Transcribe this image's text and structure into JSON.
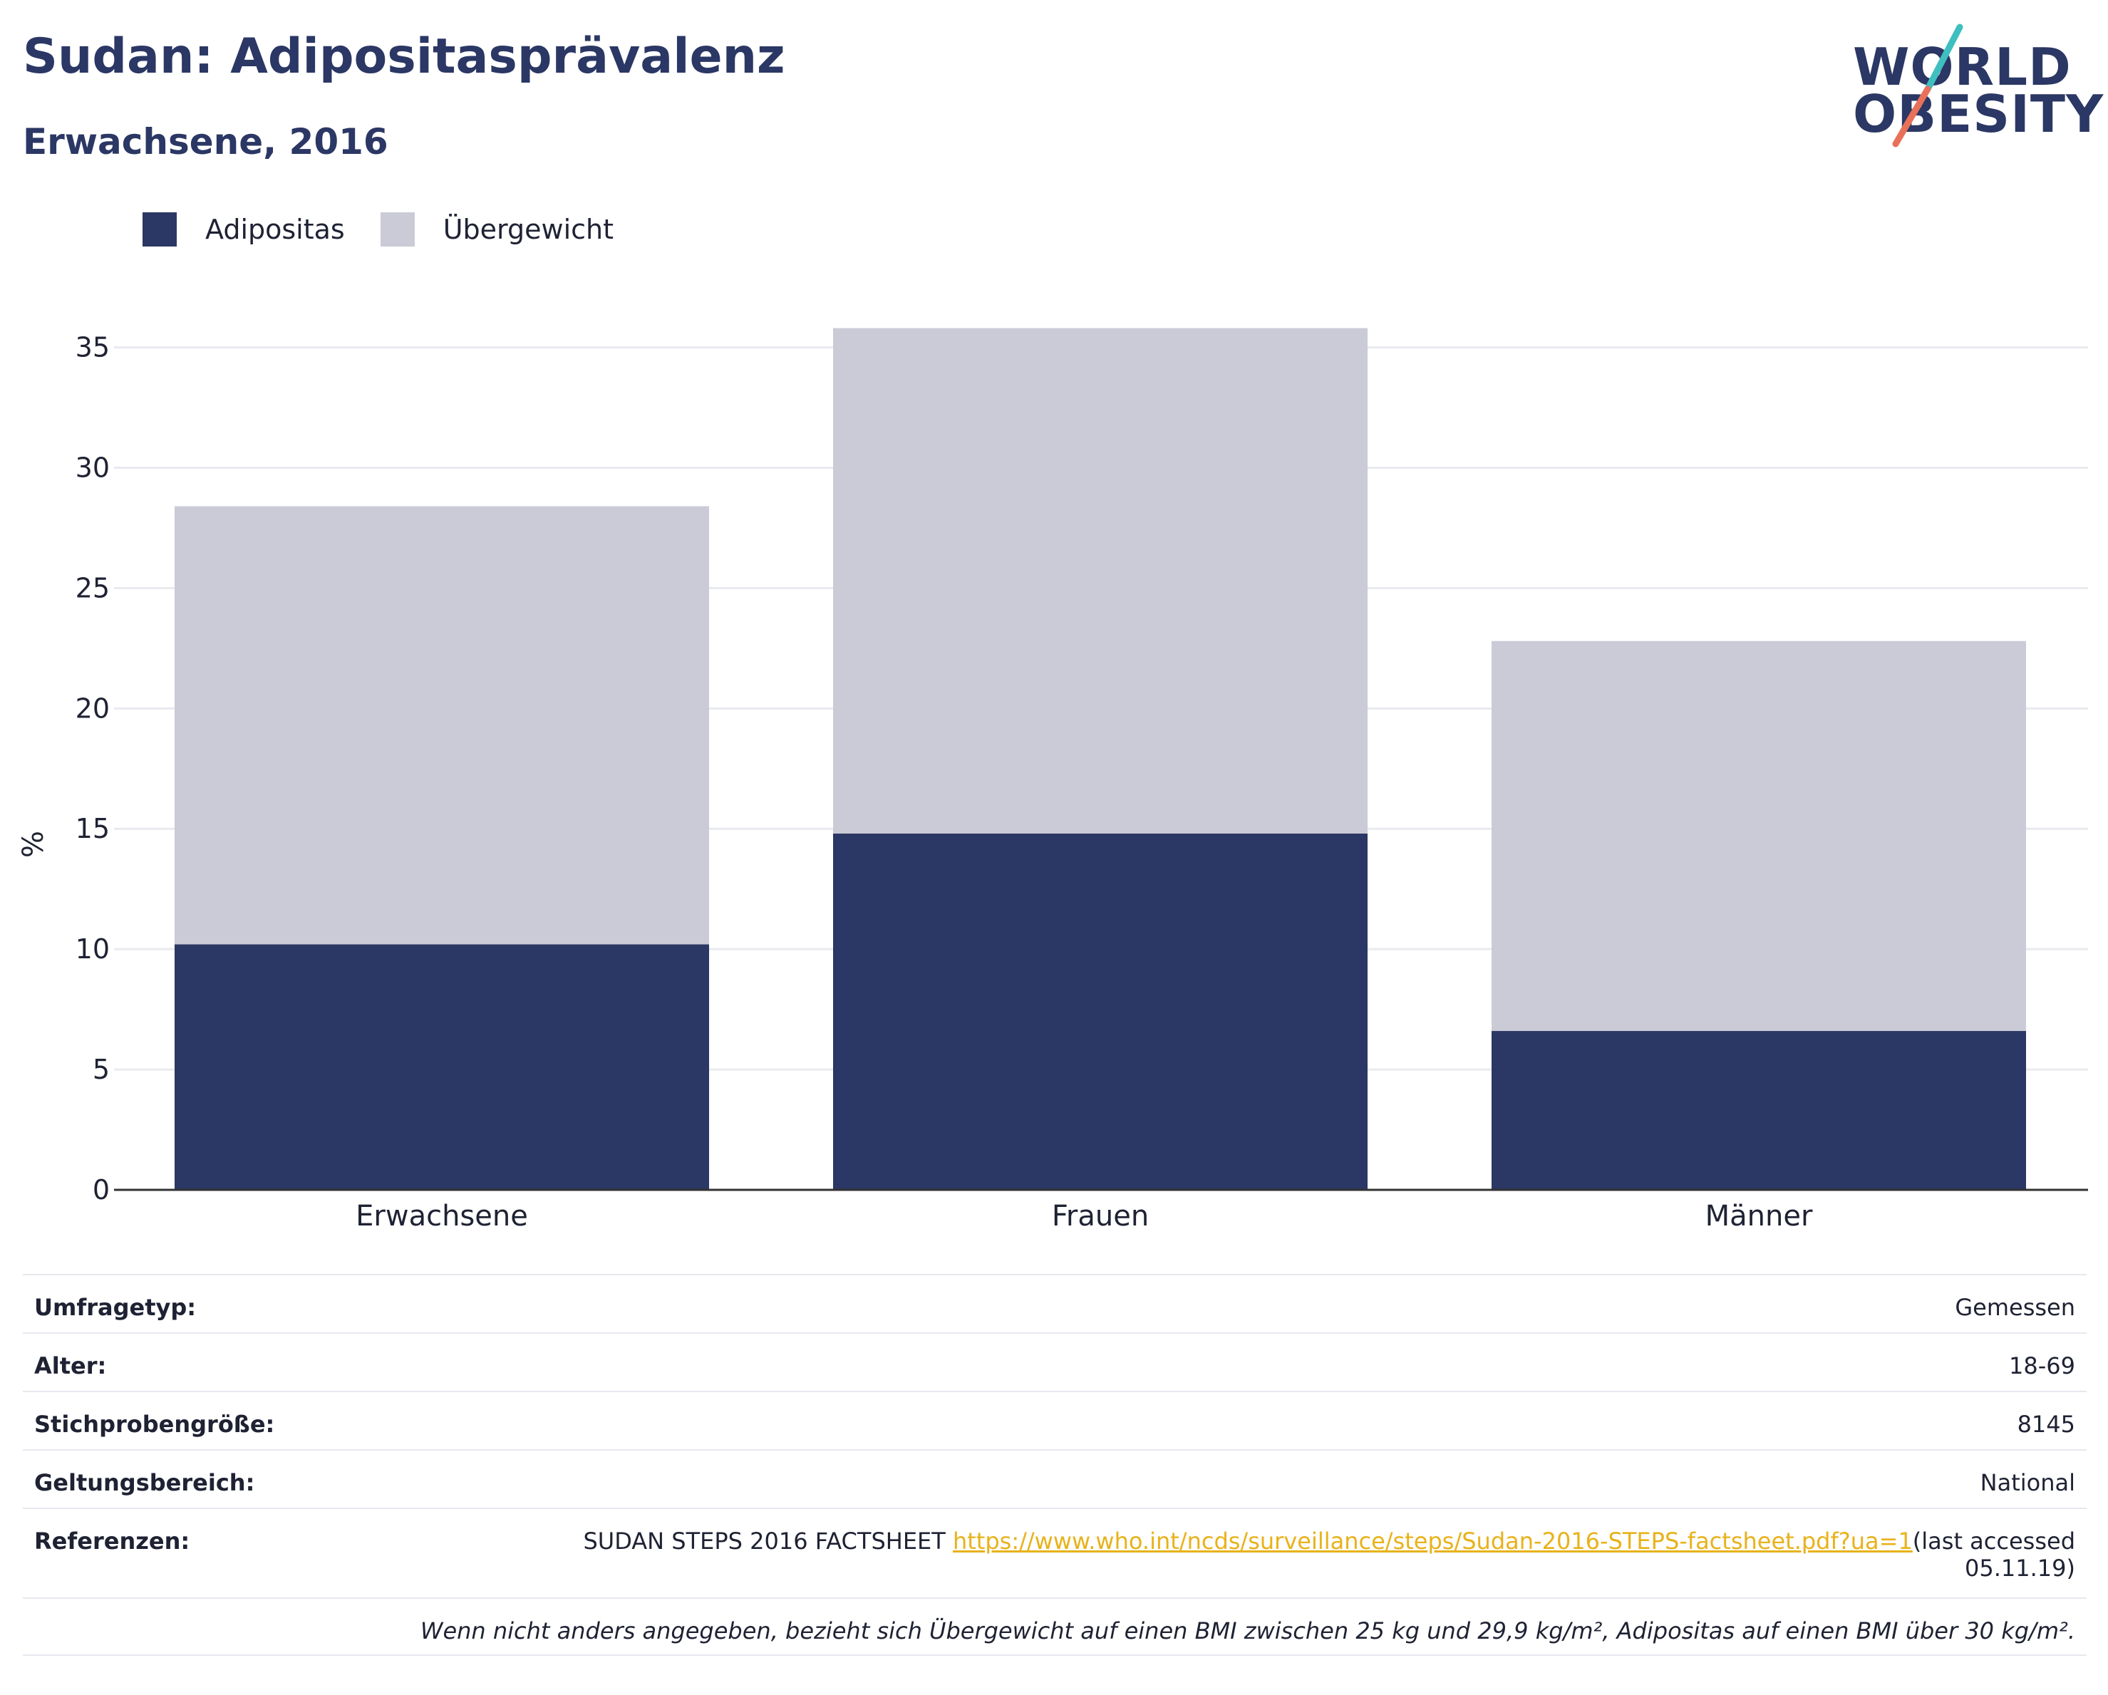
{
  "header": {
    "title": "Sudan: Adipositasprävalenz",
    "subtitle": "Erwachsene, 2016"
  },
  "logo": {
    "line1": "WORLD",
    "line2": "OBESITY",
    "slash_colors": [
      "#3fbfbf",
      "#e8715a"
    ]
  },
  "legend": {
    "items": [
      {
        "label": "Adipositas",
        "color": "#2b3764"
      },
      {
        "label": "Übergewicht",
        "color": "#cacbd6"
      }
    ]
  },
  "chart_data": {
    "type": "bar",
    "stacked": true,
    "categories": [
      "Erwachsene",
      "Frauen",
      "Männer"
    ],
    "series": [
      {
        "name": "Adipositas",
        "values": [
          10.2,
          14.8,
          6.6
        ],
        "color": "#2b3764"
      },
      {
        "name": "Übergewicht",
        "values": [
          18.2,
          21.0,
          16.2
        ],
        "color": "#cacbd6"
      }
    ],
    "ylabel": "%",
    "yticks": [
      0,
      5,
      10,
      15,
      20,
      25,
      30,
      35
    ],
    "ylim": [
      0,
      37
    ],
    "grid": true
  },
  "info": {
    "survey_type": {
      "label": "Umfragetyp:",
      "value": "Gemessen"
    },
    "age": {
      "label": "Alter:",
      "value": "18-69"
    },
    "sample_size": {
      "label": "Stichprobengröße:",
      "value": "8145"
    },
    "scope": {
      "label": "Geltungsbereich:",
      "value": "National"
    },
    "references": {
      "label": "Referenzen:",
      "source": "SUDAN STEPS 2016 FACTSHEET",
      "url": "https://www.who.int/ncds/surveillance/steps/Sudan-2016-STEPS-factsheet.pdf?ua=1",
      "accessed": "(last accessed 05.11.19)"
    },
    "note": "Wenn nicht anders angegeben, bezieht sich Übergewicht auf einen BMI zwischen 25 kg und 29,9 kg/m², Adipositas auf einen BMI über 30 kg/m²."
  }
}
